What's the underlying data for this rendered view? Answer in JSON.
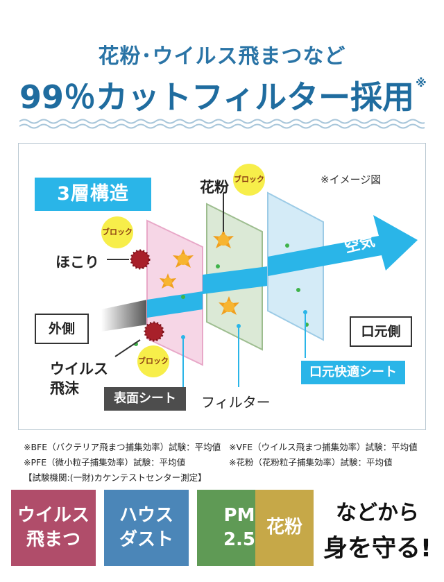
{
  "header": {
    "line1": "花粉･ウイルス飛まつなど",
    "line2": "99％カットフィルター採用",
    "line2_note": "※"
  },
  "diagram": {
    "structure_label": "3層構造",
    "image_note": "※イメージ図",
    "pollen_label": "花粉",
    "dust_label": "ほこり",
    "virus_label_l1": "ウイルス",
    "virus_label_l2": "飛沫",
    "block_label": "ブロック",
    "outside_label": "外側",
    "mouth_side_label": "口元側",
    "air_label": "空気",
    "surface_sheet_label": "表面シート",
    "filter_label": "フィルター",
    "comfort_sheet_label": "口元快適シート",
    "colors": {
      "surface_sheet": "#f6d6e6",
      "filter_sheet": "#dbe9d6",
      "comfort_sheet": "#d4ebf7",
      "air_arrow": "#2ab5e8"
    }
  },
  "footnotes": {
    "bfe": "※BFE（バクテリア飛まつ捕集効率）試験：平均値",
    "vfe": "※VFE（ウイルス飛まつ捕集効率）試験：平均値",
    "pfe": "※PFE（微小粒子捕集効率）試験：平均値",
    "pollen": "※花粉（花粉粒子捕集効率）試験：平均値",
    "lab": "【試験機関:(一財)カケンテストセンター測定】"
  },
  "categories": [
    {
      "label": "ウイルス\n飛まつ",
      "color": "#b04d6a"
    },
    {
      "label": "ハウス\nダスト",
      "color": "#4b86b8"
    },
    {
      "label": "PM\n2.5",
      "color": "#5f9a55"
    },
    {
      "label": "花粉",
      "color": "#c6a848"
    }
  ],
  "closing": {
    "line1": "などから",
    "line2": "身を守る!"
  }
}
